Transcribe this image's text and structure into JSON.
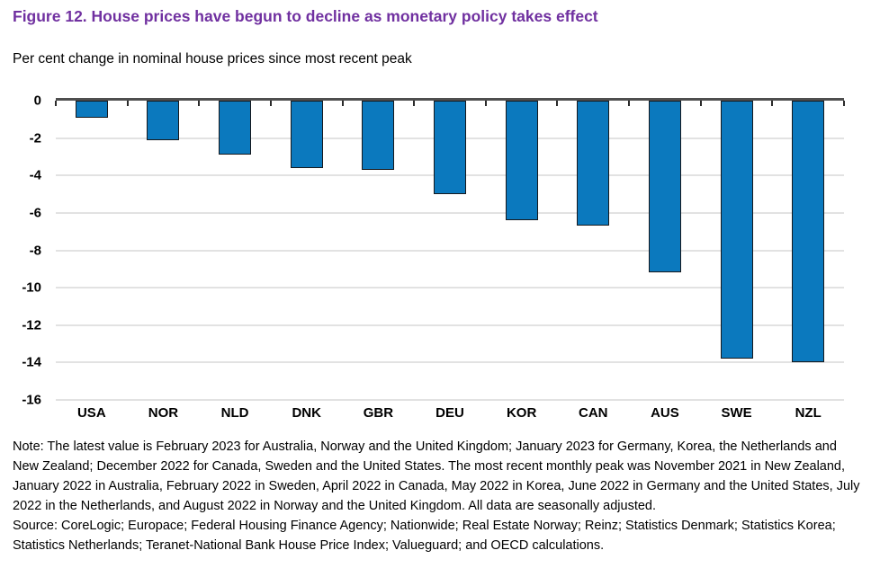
{
  "header": {
    "title": "Figure 12. House prices have begun to decline as monetary policy takes effect",
    "subtitle": "Per cent change in nominal house prices since most recent peak"
  },
  "chart_data": {
    "type": "bar",
    "title": "Per cent change in nominal house prices since most recent peak",
    "categories": [
      "USA",
      "NOR",
      "NLD",
      "DNK",
      "GBR",
      "DEU",
      "KOR",
      "CAN",
      "AUS",
      "SWE",
      "NZL"
    ],
    "values": [
      -0.9,
      -2.1,
      -2.9,
      -3.6,
      -3.7,
      -5.0,
      -6.4,
      -6.7,
      -9.2,
      -13.8,
      -14.0
    ],
    "xlabel": "",
    "ylabel": "",
    "ylim": [
      -16,
      0
    ],
    "ytick_step": 2,
    "ytick_labels": [
      "0",
      "-2",
      "-4",
      "-6",
      "-8",
      "-10",
      "-12",
      "-14",
      "-16"
    ],
    "grid": true,
    "legend": "none",
    "bar_color": "#0b79be",
    "bar_border_color": "#16181c"
  },
  "footer": {
    "note": "Note: The latest value is February 2023 for Australia, Norway and the United Kingdom; January 2023 for Germany, Korea, the Netherlands and New Zealand; December 2022 for Canada, Sweden and the United States. The most recent monthly peak was November 2021 in New Zealand, January 2022 in Australia, February 2022 in Sweden, April 2022 in Canada, May 2022 in Korea, June 2022 in Germany and the United States, July 2022 in the Netherlands, and August 2022 in Norway and the United Kingdom. All data are seasonally adjusted.",
    "source": "Source: CoreLogic; Europace; Federal Housing Finance Agency; Nationwide; Real Estate Norway; Reinz; Statistics Denmark; Statistics Korea; Statistics Netherlands; Teranet-National Bank House Price Index; Valueguard; and OECD calculations."
  },
  "colors": {
    "title": "#7030a0",
    "bar": "#0b79be",
    "zero_line": "#4f4f4f",
    "gridline": "#e2e2e2",
    "text": "#000000"
  }
}
